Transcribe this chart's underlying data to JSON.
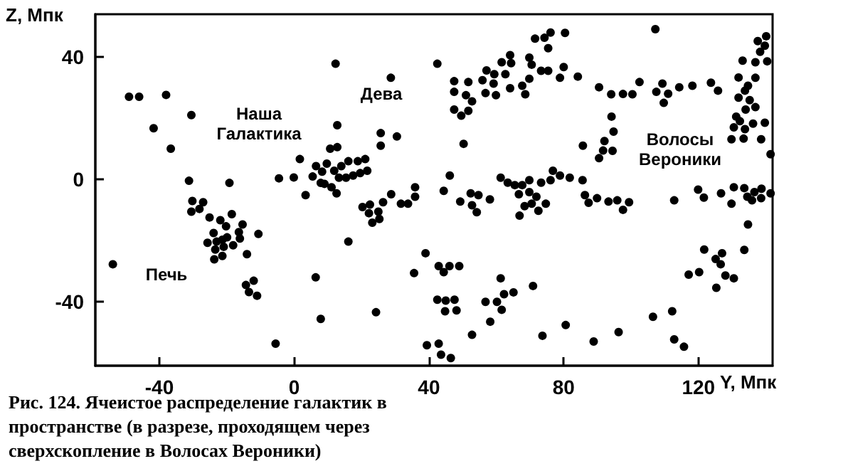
{
  "chart_data": {
    "type": "scatter",
    "xlabel": "Y, Мпк",
    "ylabel": "Z, Мпк",
    "xlim": [
      -59,
      142
    ],
    "ylim": [
      -61,
      54
    ],
    "xticks": [
      -40,
      0,
      40,
      80,
      120
    ],
    "yticks": [
      -40,
      0,
      40
    ],
    "marker": "circle",
    "annotations": [
      "Наша\nГалактика",
      "Дева",
      "Печь",
      "Волосы\nВероники",
      "Рис. 124. Ячеистое распределение галактик в пространстве (в разрезе, проходящем через сверхскопление в Волосах Вероники)"
    ],
    "series": [
      {
        "color": "#000000",
        "x": [
          -49,
          -46,
          -38,
          -30.5,
          -41.7,
          -36.6,
          -31.2,
          -19.2,
          -4.5,
          -0.1,
          1.7,
          5.5,
          6.5,
          8.3,
          7.9,
          3.4,
          -30.2,
          -27,
          -30.5,
          -28.1,
          -25.1,
          -21.9,
          -18.5,
          -20.2,
          -15.3,
          -23.9,
          -19.9,
          -16.4,
          -16.1,
          -10.6,
          -25.7,
          -23,
          -21.3,
          -23.4,
          -20.9,
          -18.1,
          -23.7,
          -21.3,
          -14,
          -53.8,
          6.4,
          -14.3,
          -12,
          -13.4,
          -11,
          7.9,
          -5.5,
          12.3,
          28.7,
          42.5,
          12.8,
          10.7,
          12.8,
          25.7,
          25.7,
          30.5,
          50.3,
          9.7,
          11.9,
          14,
          16.1,
          18.9,
          21.1,
          21.7,
          19.6,
          17.5,
          15.4,
          13.3,
          9,
          11.1,
          12.6,
          47.5,
          51.7,
          47.5,
          51,
          52.8,
          47.5,
          49.6,
          51.7,
          57.1,
          59.4,
          55.9,
          59.2,
          61.6,
          64.1,
          64.4,
          62.7,
          56.8,
          59.9,
          64.1,
          67.7,
          68.6,
          69.8,
          70.5,
          69.8,
          73.3,
          75.4,
          71.5,
          74.3,
          76.1,
          75.4,
          80.4,
          80,
          78.9,
          28.8,
          35.9,
          46.2,
          61.3,
          63.4,
          65.5,
          67.7,
          69.8,
          73.3,
          76.8,
          76.1,
          78.9,
          81.8,
          35.9,
          20.3,
          22.5,
          26.4,
          22.2,
          25,
          23.2,
          25.3,
          31.7,
          33.8,
          44.4,
          49.3,
          52.4,
          54.7,
          52.8,
          54.2,
          58.1,
          66.7,
          69.8,
          71.9,
          70.5,
          68.4,
          74.7,
          72.5,
          66.9,
          16.1,
          39,
          35.6,
          42.9,
          46.1,
          49,
          44.4,
          42.5,
          45,
          47.6,
          44.8,
          48.2,
          24.3,
          39.4,
          42.9,
          43.6,
          46.5,
          52.8,
          58.2,
          56.8,
          60.2,
          61.6,
          62.3,
          65.1,
          61.3,
          70.9,
          73.7,
          80.6,
          107.2,
          84.2,
          90.5,
          94.1,
          97.6,
          100.4,
          102.5,
          107.5,
          109.3,
          111,
          109.7,
          114.3,
          118.2,
          123.7,
          125.8,
          94.2,
          94.8,
          92.1,
          85.7,
          91.7,
          94.5,
          90.5,
          137.6,
          140.1,
          139.7,
          138.3,
          140.4,
          136.9,
          133.1,
          131.9,
          136.9,
          134.7,
          131.9,
          133.8,
          135.2,
          136.9,
          134,
          131.2,
          132.3,
          130.5,
          133.8,
          136.2,
          139.7,
          129.8,
          133.4,
          138.6,
          141.4,
          85.6,
          86.3,
          87.4,
          89.9,
          93.3,
          95.9,
          97.6,
          99.4,
          112.8,
          119.9,
          121.6,
          126.7,
          129.8,
          130.5,
          133.6,
          134.5,
          135.9,
          136.6,
          138.7,
          138.6,
          141.4,
          134.7,
          121.7,
          125.1,
          127,
          126.6,
          133.6,
          117.1,
          120.2,
          128,
          130.5,
          125.3,
          106.5,
          112.2,
          112.8,
          115.7,
          88.9,
          96.3
        ],
        "values": [
          27,
          27,
          27.6,
          21,
          16.7,
          10,
          -0.5,
          -1.2,
          0.3,
          0.6,
          6.6,
          0.9,
          4.3,
          2.5,
          -1.2,
          -5.2,
          -7.1,
          -7.5,
          -10.6,
          -9.7,
          -12.5,
          -13.4,
          -11.4,
          -15.4,
          -14.8,
          -17.6,
          -19,
          -17.3,
          -19.4,
          -17.9,
          -20.8,
          -20.4,
          -19.8,
          -23,
          -22.1,
          -21.6,
          -26.2,
          -25.1,
          -24.5,
          -27.8,
          -32.1,
          -34.6,
          -33.2,
          -36.9,
          -38.1,
          -45.7,
          -53.8,
          37.8,
          33.2,
          37.8,
          17.7,
          10,
          10.5,
          15.1,
          11,
          14,
          11.6,
          5.1,
          2.8,
          4.3,
          5.9,
          5.9,
          6.6,
          2.8,
          2,
          1.2,
          0.5,
          0.5,
          -1.5,
          -2.6,
          -4.6,
          32.1,
          31.8,
          28.6,
          27.5,
          25.5,
          22.8,
          20.8,
          22.4,
          35.6,
          34.4,
          32.4,
          31.3,
          38.3,
          40.6,
          38,
          34.4,
          28.2,
          27.5,
          29.8,
          30.6,
          27.8,
          39.8,
          37.5,
          32.9,
          35.5,
          35.5,
          46,
          46.3,
          48,
          42.9,
          47.9,
          36.7,
          33.2,
          -4.9,
          -2.6,
          1.2,
          0.5,
          -1.1,
          -1.9,
          -1.9,
          -0.3,
          -1.1,
          2.8,
          -0.3,
          1.2,
          0.5,
          -5.7,
          -9.1,
          -8.3,
          -7.5,
          -11.1,
          -10.6,
          -14.2,
          -13,
          -8,
          -8,
          -3.8,
          -7.3,
          -4.6,
          -5.2,
          -8.5,
          -10.8,
          -6.6,
          -4.9,
          -4.2,
          -5.7,
          -8,
          -8.8,
          -8,
          -10.3,
          -11.9,
          -20.4,
          -24.2,
          -30.7,
          -28.4,
          -28.4,
          -28.4,
          -30.4,
          -39.4,
          -39.7,
          -39.4,
          -43.2,
          -42.9,
          -43.5,
          -54.3,
          -53.8,
          -57.4,
          -58.5,
          -50.9,
          -46.6,
          -40.1,
          -40.1,
          -42.7,
          -37.6,
          -37,
          -32.4,
          -34.9,
          -51.2,
          -47.7,
          49.1,
          33.6,
          30.1,
          27.8,
          27.9,
          27.8,
          31.8,
          28.6,
          31.3,
          28,
          25,
          30.1,
          30.6,
          31.6,
          29,
          20.5,
          15.6,
          12.5,
          11,
          9.4,
          9.3,
          6.9,
          45.2,
          46.8,
          43.7,
          41.7,
          38.6,
          38.3,
          38.8,
          33.3,
          33.2,
          30.6,
          26.7,
          29,
          25.9,
          23.6,
          22.8,
          20.5,
          19,
          17,
          16.4,
          18.2,
          18.5,
          13.1,
          13.3,
          13.1,
          8.2,
          -0.3,
          -5.2,
          -7.7,
          -6.2,
          -7.3,
          -6.9,
          -10,
          -7.5,
          -6.9,
          -3.4,
          -6,
          -4.6,
          -8,
          -2.6,
          -2.9,
          -5.7,
          -6.9,
          -4.2,
          -3.1,
          -6.2,
          -4.6,
          -14.8,
          -23,
          -26.1,
          -24.2,
          -27.8,
          -23.1,
          -31.2,
          -30.4,
          -31.5,
          -32.4,
          -35.5,
          -45,
          -43.2,
          -52.4,
          -54.8,
          -53.1,
          -50
        ]
      }
    ]
  }
}
